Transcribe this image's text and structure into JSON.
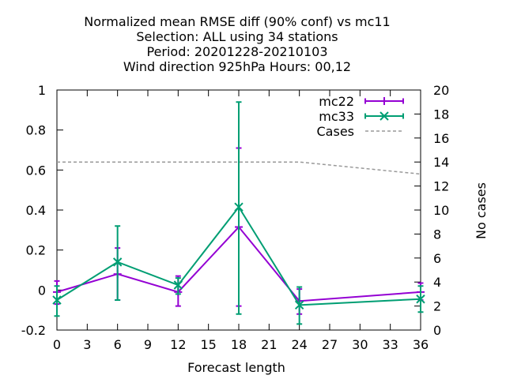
{
  "chart_data": {
    "type": "line",
    "title_lines": [
      "Normalized mean RMSE diff (90% conf) vs mc11",
      "Selection: ALL using    34 stations",
      "Period: 20201228-20210103",
      "Wind direction 925hPa   Hours:  00,12"
    ],
    "xlabel": "Forecast length",
    "ylabel": "",
    "y2label": "No cases",
    "xlim": [
      0,
      36
    ],
    "ylim": [
      -0.2,
      1.0
    ],
    "y2lim": [
      0,
      20
    ],
    "x_ticks": [
      "0",
      "3",
      "6",
      "9",
      "12",
      "15",
      "18",
      "21",
      "24",
      "27",
      "30",
      "33",
      "36"
    ],
    "y_ticks": [
      "-0.2",
      "0",
      "0.2",
      "0.4",
      "0.6",
      "0.8",
      "1"
    ],
    "y2_ticks": [
      "0",
      "2",
      "4",
      "6",
      "8",
      "10",
      "12",
      "14",
      "16",
      "18",
      "20"
    ],
    "legend_position": "top-right",
    "series": [
      {
        "name": "mc22",
        "color": "#9400d3",
        "marker": "plus",
        "x": [
          0,
          6,
          12,
          18,
          24,
          36
        ],
        "y": [
          -0.01,
          0.08,
          -0.01,
          0.315,
          -0.055,
          -0.01
        ],
        "err_low": [
          -0.07,
          -0.05,
          -0.08,
          -0.08,
          -0.12,
          -0.05
        ],
        "err_high": [
          0.045,
          0.21,
          0.07,
          0.71,
          0.005,
          0.035
        ]
      },
      {
        "name": "mc33",
        "color": "#009e73",
        "marker": "cross",
        "x": [
          0,
          6,
          12,
          18,
          24,
          36
        ],
        "y": [
          -0.05,
          0.14,
          0.025,
          0.415,
          -0.075,
          -0.045
        ],
        "err_low": [
          -0.13,
          -0.05,
          -0.02,
          -0.12,
          -0.17,
          -0.11
        ],
        "err_high": [
          0.02,
          0.32,
          0.06,
          0.94,
          0.015,
          0.02
        ]
      },
      {
        "name": "Cases",
        "color": "#999999",
        "axis": "y2",
        "dashed": true,
        "x": [
          0,
          6,
          12,
          18,
          24,
          36
        ],
        "y": [
          14,
          14,
          14,
          14,
          14,
          13
        ]
      }
    ]
  }
}
